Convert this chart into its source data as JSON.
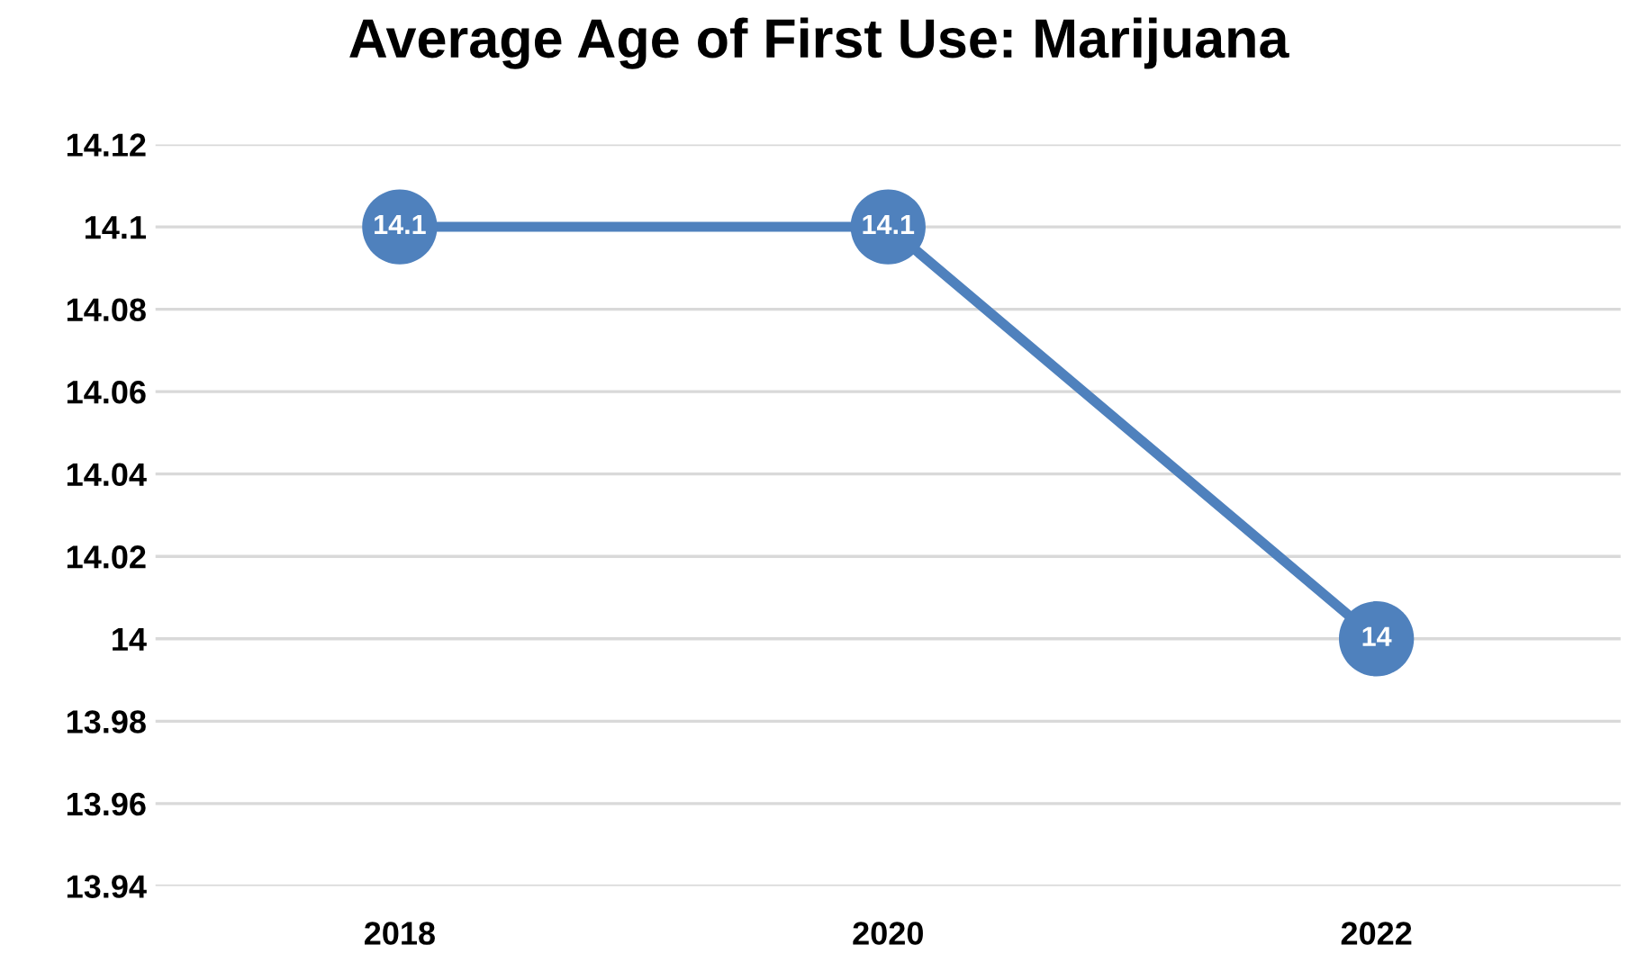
{
  "chart_data": {
    "type": "line",
    "title": "Average Age of First Use: Marijuana",
    "categories": [
      "2018",
      "2020",
      "2022"
    ],
    "series": [
      {
        "color": "#4f81bd",
        "values": [
          14.1,
          14.1,
          14
        ]
      }
    ],
    "ylim": [
      13.94,
      14.12
    ],
    "yticks": [
      13.94,
      13.96,
      13.98,
      14,
      14.02,
      14.04,
      14.06,
      14.08,
      14.1,
      14.12
    ],
    "grid": "y",
    "marker": "circle",
    "line_style": "solid",
    "data_labels": true,
    "legend": false
  }
}
